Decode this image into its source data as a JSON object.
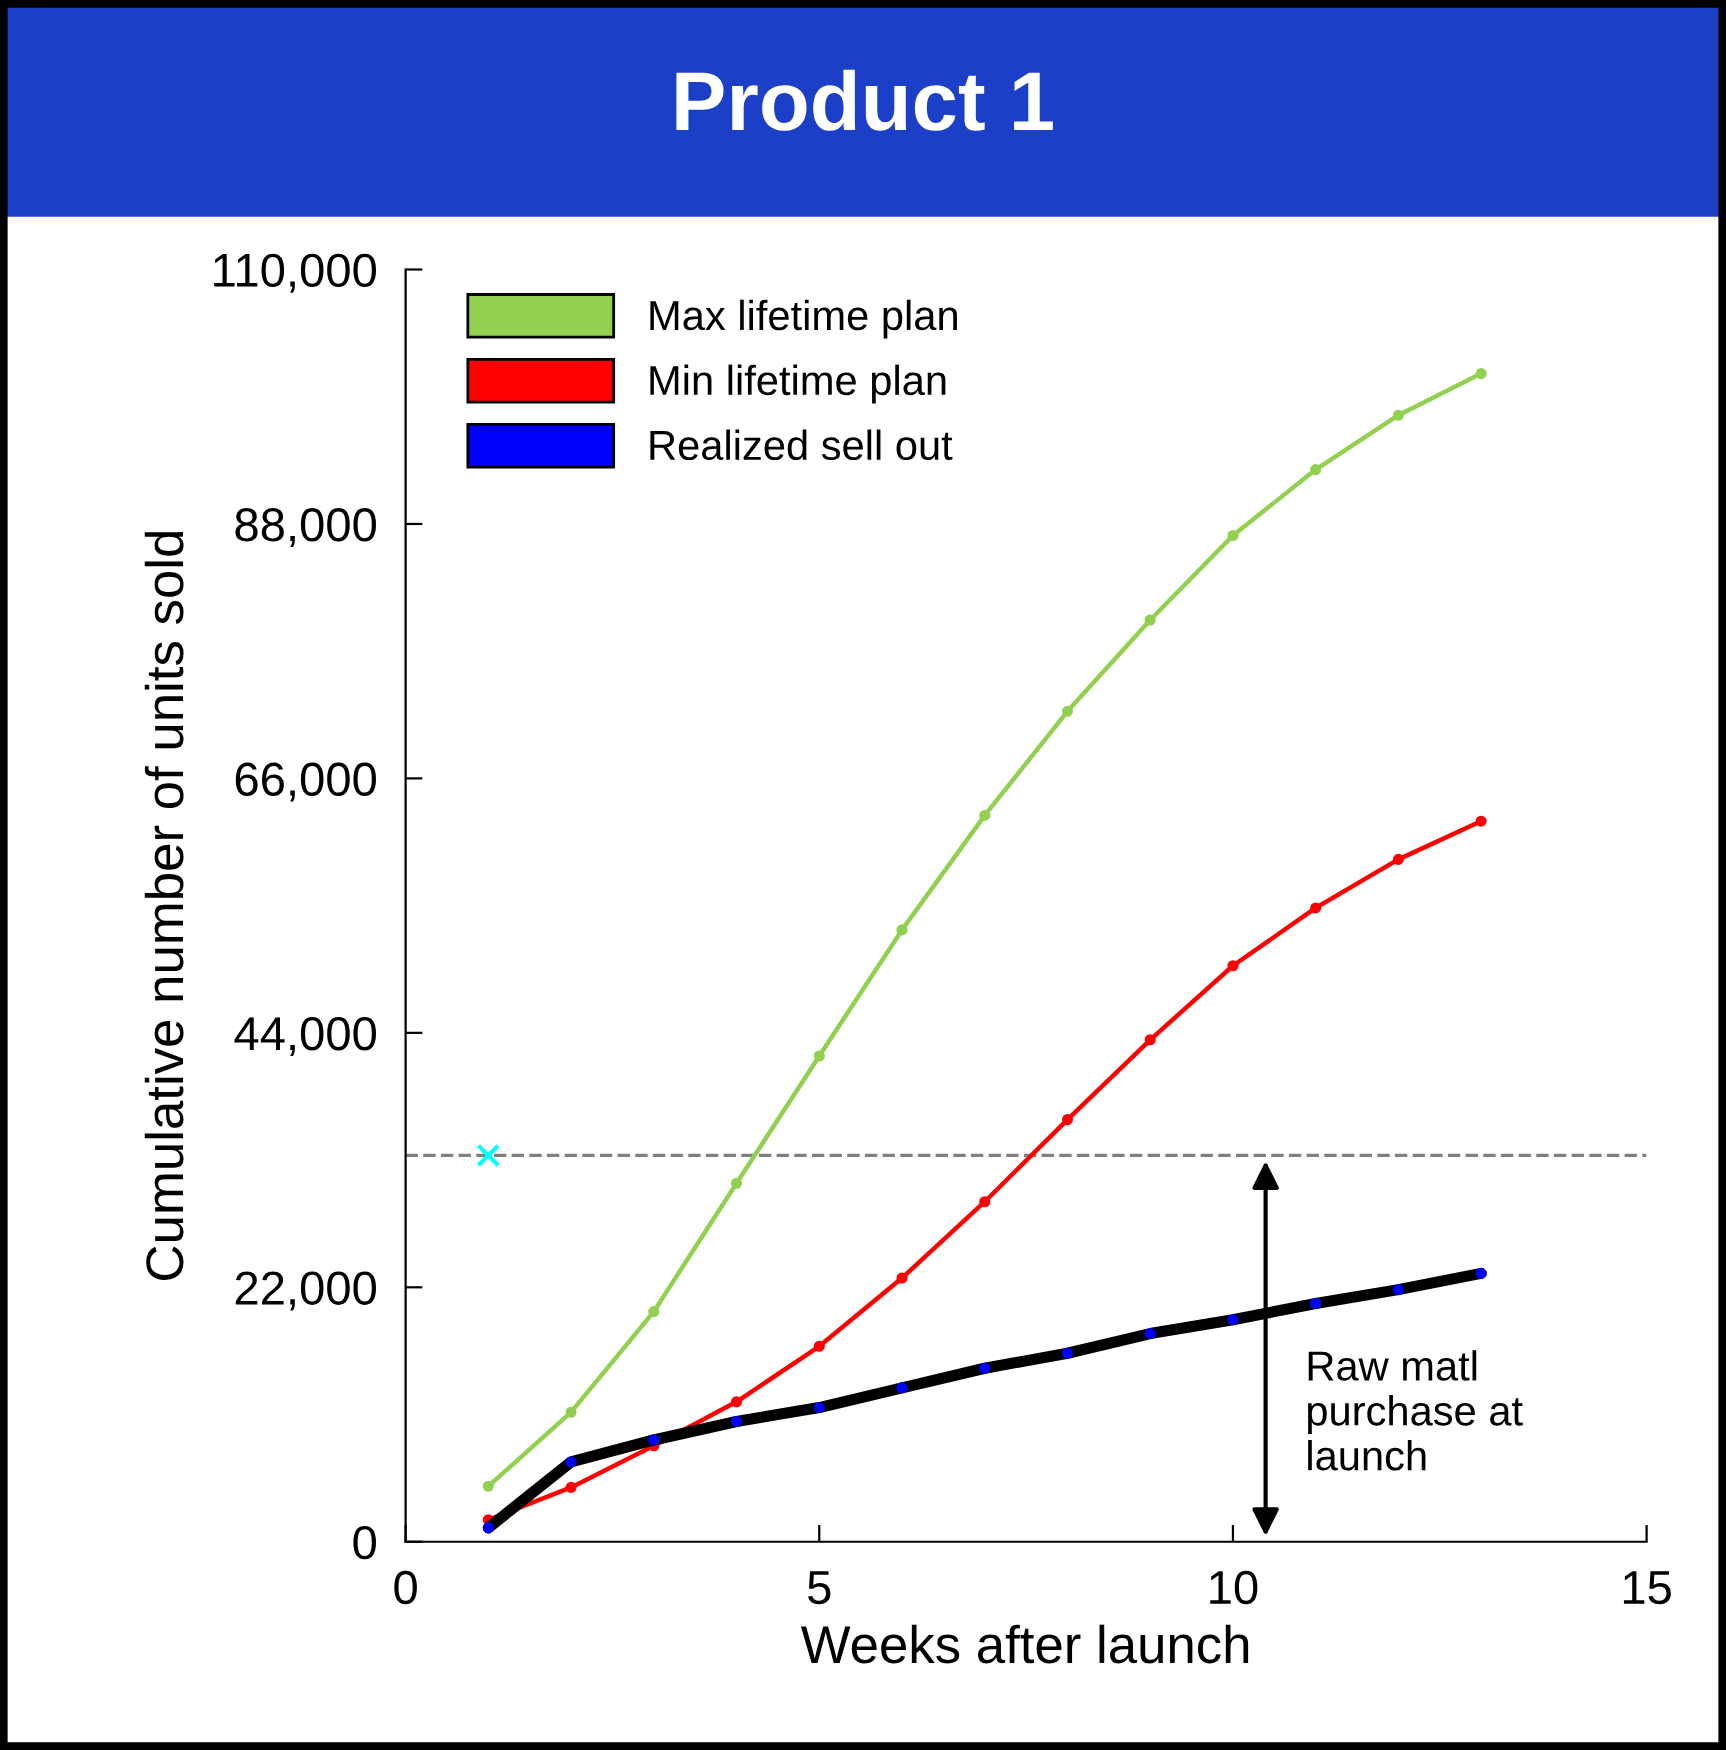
{
  "chart_data": {
    "type": "line",
    "title": "Product 1",
    "xlabel": "Weeks after launch",
    "ylabel": "Cumulative number of units sold",
    "xlim": [
      0,
      15
    ],
    "xticks": [
      0,
      5,
      10,
      15
    ],
    "ylim": [
      0,
      110000
    ],
    "yticks": [
      {
        "value": 0,
        "label": "0"
      },
      {
        "value": 22000,
        "label": "22,000"
      },
      {
        "value": 44000,
        "label": "44,000"
      },
      {
        "value": 66000,
        "label": "66,000"
      },
      {
        "value": 88000,
        "label": "88,000"
      },
      {
        "value": 110000,
        "label": "110,000"
      }
    ],
    "x": [
      1,
      2,
      3,
      4,
      5,
      6,
      7,
      8,
      9,
      10,
      11,
      12,
      13
    ],
    "marker": "circle",
    "grid": false,
    "legend": "top left",
    "series": [
      {
        "name": "Max lifetime plan",
        "color": "#92d050",
        "values": [
          4800,
          11200,
          19900,
          31000,
          42000,
          52900,
          62800,
          71800,
          79700,
          87000,
          92700,
          97400,
          101000
        ]
      },
      {
        "name": "Min lifetime plan",
        "color": "#ff0000",
        "values": [
          1900,
          4700,
          8300,
          12100,
          16900,
          22800,
          29400,
          36500,
          43400,
          49800,
          54800,
          59000,
          62300
        ]
      },
      {
        "name": "Realized sell out",
        "color": "#0000ff",
        "values": [
          1200,
          6900,
          8800,
          10400,
          11600,
          13300,
          15000,
          16300,
          18000,
          19200,
          20600,
          21800,
          23200
        ]
      },
      {
        "type": "scatter",
        "color": "#00ffff",
        "marker": "cross",
        "x": [
          1
        ],
        "values": [
          33400
        ]
      }
    ],
    "ref_lines": [
      {
        "axis": "y",
        "value": 33400,
        "color": "#808080",
        "line_style": "dashed"
      }
    ],
    "annotations": [
      "Raw matl\npurchase at\nlaunch"
    ]
  }
}
